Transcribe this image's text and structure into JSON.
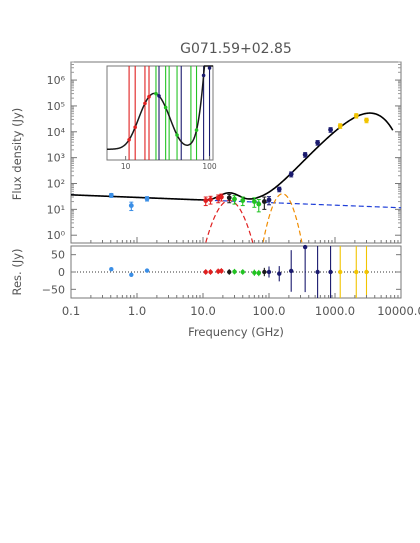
{
  "chart_data": {
    "type": "scatter",
    "title": "G071.59+02.85",
    "xlabel": "Frequency (GHz)",
    "ylabel": "Flux density (Jy)",
    "residual_ylabel": "Res. (Jy)",
    "x_scale": "log",
    "y_scale": "log",
    "xlim": [
      0.1,
      10000.0
    ],
    "ylim": [
      0.5,
      5000000
    ],
    "residual_ylim": [
      -75,
      75
    ],
    "x_ticks": [
      0.1,
      1.0,
      10.0,
      100.0,
      1000.0,
      10000.0
    ],
    "x_tick_labels": [
      "0.1",
      "1.0",
      "10.0",
      "100.0",
      "1000.0",
      "10000.0"
    ],
    "y_ticks": [
      1,
      10,
      100,
      1000,
      10000,
      100000,
      1000000
    ],
    "y_tick_labels": [
      "10⁰",
      "10¹",
      "10²",
      "10³",
      "10⁴",
      "10⁵",
      "10⁶"
    ],
    "residual_ticks": [
      50,
      0,
      -50
    ],
    "residual_tick_labels": [
      "50",
      "0",
      "−50"
    ],
    "inset_ticks": [
      10,
      100
    ],
    "inset_tick_labels": [
      "10",
      "100"
    ],
    "grid": false,
    "legend": "none",
    "series": [
      {
        "color": "#3a8ee6",
        "points": [
          {
            "x": 0.408,
            "y": 35,
            "err": 6
          },
          {
            "x": 0.82,
            "y": 14,
            "err": 5
          },
          {
            "x": 1.42,
            "y": 26,
            "err": 5
          }
        ],
        "residuals": [
          {
            "x": 0.408,
            "y": 8,
            "err": 4
          },
          {
            "x": 0.82,
            "y": -8,
            "err": 4
          },
          {
            "x": 1.42,
            "y": 4,
            "err": 4
          }
        ]
      },
      {
        "color": "#e01f1f",
        "points": [
          {
            "x": 11.0,
            "y": 22,
            "err": 8
          },
          {
            "x": 13.0,
            "y": 24,
            "err": 8
          },
          {
            "x": 17.0,
            "y": 27,
            "err": 9
          },
          {
            "x": 19.0,
            "y": 30,
            "err": 9
          }
        ],
        "residuals": [
          {
            "x": 11.0,
            "y": 0,
            "err": 8
          },
          {
            "x": 13.0,
            "y": 0,
            "err": 8
          },
          {
            "x": 17.0,
            "y": 2,
            "err": 8
          },
          {
            "x": 19.0,
            "y": 3,
            "err": 8
          }
        ]
      },
      {
        "color": "#1a1a1a",
        "points": [
          {
            "x": 25.0,
            "y": 28,
            "err": 10
          }
        ],
        "residuals": [
          {
            "x": 25.0,
            "y": 0,
            "err": 8
          }
        ]
      },
      {
        "color": "#22c322",
        "points": [
          {
            "x": 30.0,
            "y": 25,
            "err": 9
          },
          {
            "x": 40.0,
            "y": 22,
            "err": 8
          },
          {
            "x": 60.0,
            "y": 20,
            "err": 8
          },
          {
            "x": 70.0,
            "y": 16,
            "err": 8
          }
        ],
        "residuals": [
          {
            "x": 30.0,
            "y": 1,
            "err": 8
          },
          {
            "x": 40.0,
            "y": 0,
            "err": 8
          },
          {
            "x": 60.0,
            "y": -2,
            "err": 9
          },
          {
            "x": 70.0,
            "y": -3,
            "err": 9
          }
        ]
      },
      {
        "color": "#1a1a1a",
        "points": [
          {
            "x": 85.0,
            "y": 20,
            "err": 10
          }
        ],
        "residuals": [
          {
            "x": 85.0,
            "y": 0,
            "err": 12
          }
        ]
      },
      {
        "color": "#1a1a6e",
        "points": [
          {
            "x": 100.0,
            "y": 23,
            "err": 8
          },
          {
            "x": 143.0,
            "y": 60,
            "err": 12
          },
          {
            "x": 217.0,
            "y": 230,
            "err": 50
          },
          {
            "x": 353.0,
            "y": 1300,
            "err": 260
          },
          {
            "x": 545.0,
            "y": 3800,
            "err": 760
          },
          {
            "x": 857.0,
            "y": 12000,
            "err": 2400
          }
        ],
        "residuals": [
          {
            "x": 100.0,
            "y": 0,
            "err": 16
          },
          {
            "x": 143.0,
            "y": -5,
            "err": 22
          },
          {
            "x": 217.0,
            "y": 3,
            "err": 60
          },
          {
            "x": 353.0,
            "y": 72,
            "err": 130
          },
          {
            "x": 545.0,
            "y": 0,
            "err": 120
          },
          {
            "x": 857.0,
            "y": 0,
            "err": 120
          }
        ]
      },
      {
        "color": "#f2c400",
        "points": [
          {
            "x": 1200.0,
            "y": 17000,
            "err": 3400
          },
          {
            "x": 2100.0,
            "y": 42000,
            "err": 8000
          },
          {
            "x": 3000.0,
            "y": 28000,
            "err": 5600
          }
        ],
        "residuals": [
          {
            "x": 1200.0,
            "y": 0,
            "err": 120
          },
          {
            "x": 2100.0,
            "y": 0,
            "err": 120
          },
          {
            "x": 3000.0,
            "y": 0,
            "err": 120
          }
        ]
      }
    ],
    "inset": {
      "xlim": [
        6,
        110
      ],
      "line_color": "#1a1a1a",
      "series": [
        {
          "color": "#e01f1f",
          "x": [
            11,
            13,
            17,
            19
          ]
        },
        {
          "color": "#22c322",
          "x": [
            23,
            30,
            33,
            41,
            60,
            70
          ]
        },
        {
          "color": "#1a1a6e",
          "x": [
            25,
            46,
            85,
            100
          ]
        }
      ]
    },
    "model_colors": {
      "total": "#000000",
      "free_free": "#1f3fd8",
      "ame": "#e01f1f",
      "cmb": "#f08c00"
    }
  }
}
